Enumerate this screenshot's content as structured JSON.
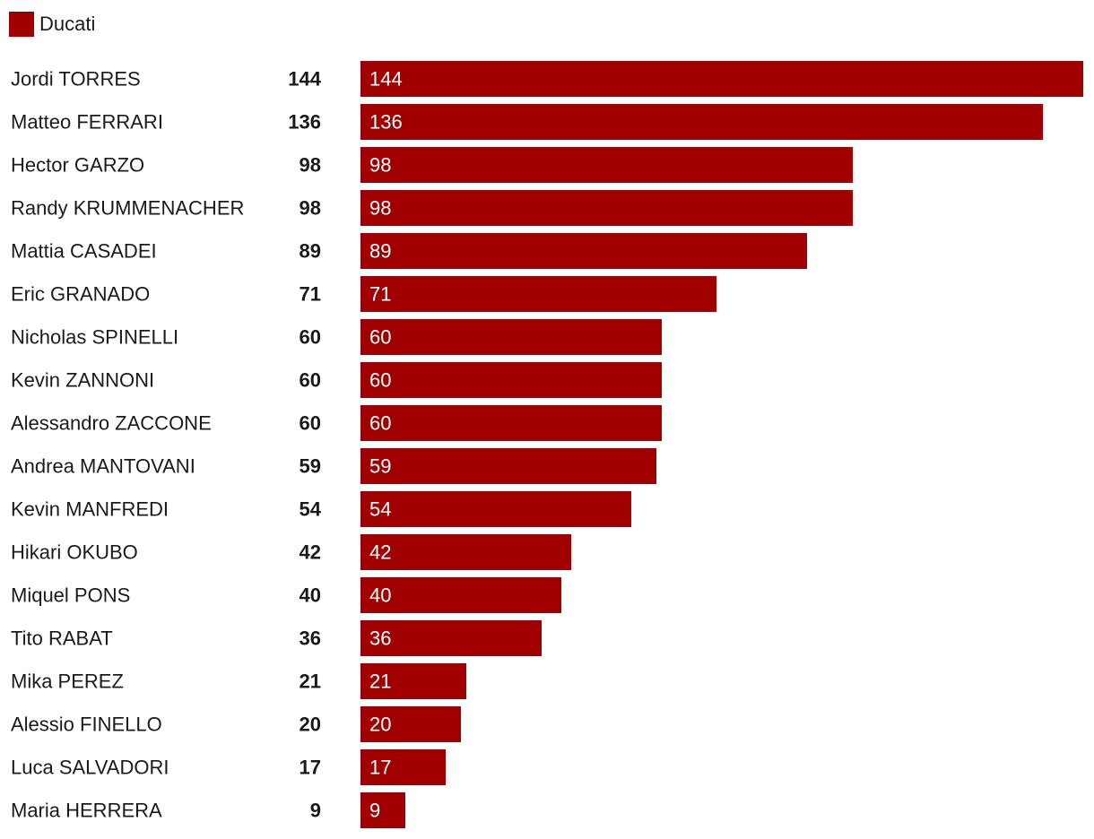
{
  "legend": {
    "label": "Ducati",
    "color": "#a00000"
  },
  "chart_data": {
    "type": "bar",
    "orientation": "horizontal",
    "title": "",
    "xlabel": "",
    "ylabel": "",
    "xlim": [
      0,
      144
    ],
    "grid": false,
    "legend_position": "top-left",
    "bar_color": "#a00000",
    "categories": [
      "Jordi TORRES",
      "Matteo FERRARI",
      "Hector GARZO",
      "Randy KRUMMENACHER",
      "Mattia CASADEI",
      "Eric GRANADO",
      "Nicholas SPINELLI",
      "Kevin ZANNONI",
      "Alessandro ZACCONE",
      "Andrea MANTOVANI",
      "Kevin MANFREDI",
      "Hikari OKUBO",
      "Miquel PONS",
      "Tito RABAT",
      "Mika PEREZ",
      "Alessio FINELLO",
      "Luca SALVADORI",
      "Maria HERRERA"
    ],
    "series": [
      {
        "name": "Ducati",
        "values": [
          144,
          136,
          98,
          98,
          89,
          71,
          60,
          60,
          60,
          59,
          54,
          42,
          40,
          36,
          21,
          20,
          17,
          9
        ]
      }
    ],
    "totals": [
      144,
      136,
      98,
      98,
      89,
      71,
      60,
      60,
      60,
      59,
      54,
      42,
      40,
      36,
      21,
      20,
      17,
      9
    ]
  }
}
